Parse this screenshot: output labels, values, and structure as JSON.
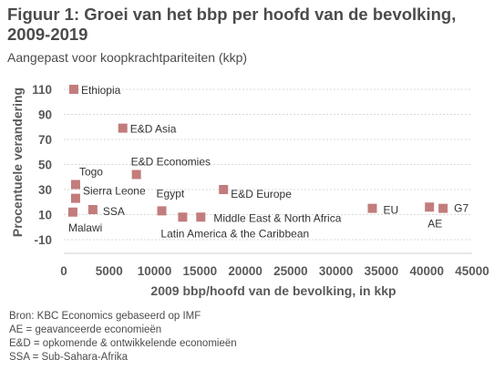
{
  "header": {
    "title": "Figuur 1: Groei van het bbp per hoofd van de bevolking, 2009-2019",
    "subtitle": "Aangepast voor koopkrachtpariteiten (kkp)"
  },
  "chart_data": {
    "type": "scatter",
    "title": "Figuur 1: Groei van het bbp per hoofd van de bevolking, 2009-2019",
    "subtitle": "Aangepast voor koopkrachtpariteiten (kkp)",
    "xlabel": "2009 bbp/hoofd van de bevolking, in kkp",
    "ylabel": "Procentuele verandering",
    "xlim": [
      0,
      45000
    ],
    "ylim": [
      -15,
      120
    ],
    "xticks": [
      0,
      5000,
      10000,
      15000,
      20000,
      25000,
      30000,
      35000,
      40000,
      45000
    ],
    "xtick_labels": [
      "0",
      "5000",
      "10000",
      "15000",
      "20000",
      "25000",
      "30000",
      "35000",
      "40000",
      "45000"
    ],
    "yticks": [
      -10,
      10,
      30,
      50,
      70,
      90,
      110
    ],
    "ytick_labels": [
      "-10",
      "10",
      "30",
      "50",
      "70",
      "90",
      "110"
    ],
    "grid": "horizontal",
    "marker_color": "#c27c7c",
    "points": [
      {
        "label": "Ethiopia",
        "x": 1100,
        "y": 110
      },
      {
        "label": "E&D Asia",
        "x": 6500,
        "y": 79
      },
      {
        "label": "E&D Economies",
        "x": 8000,
        "y": 42
      },
      {
        "label": "Togo",
        "x": 1300,
        "y": 34
      },
      {
        "label": "Sierra Leone",
        "x": 1300,
        "y": 23
      },
      {
        "label": "SSA",
        "x": 3200,
        "y": 14
      },
      {
        "label": "Malawi",
        "x": 1000,
        "y": 12
      },
      {
        "label": "Egypt",
        "x": 10800,
        "y": 13
      },
      {
        "label": "Latin America & the Caribbean",
        "x": 13100,
        "y": 8
      },
      {
        "label": "Middle East & North Africa",
        "x": 15100,
        "y": 8
      },
      {
        "label": "E&D Europe",
        "x": 17600,
        "y": 30
      },
      {
        "label": "EU",
        "x": 34000,
        "y": 15
      },
      {
        "label": "AE",
        "x": 40300,
        "y": 16
      },
      {
        "label": "G7",
        "x": 41800,
        "y": 15
      }
    ]
  },
  "notes": [
    "Bron: KBC Economics gebaseerd op IMF",
    "AE = geavanceerde economieën",
    "E&D = opkomende & ontwikkelende economieën",
    "SSA = Sub-Sahara-Afrika"
  ]
}
